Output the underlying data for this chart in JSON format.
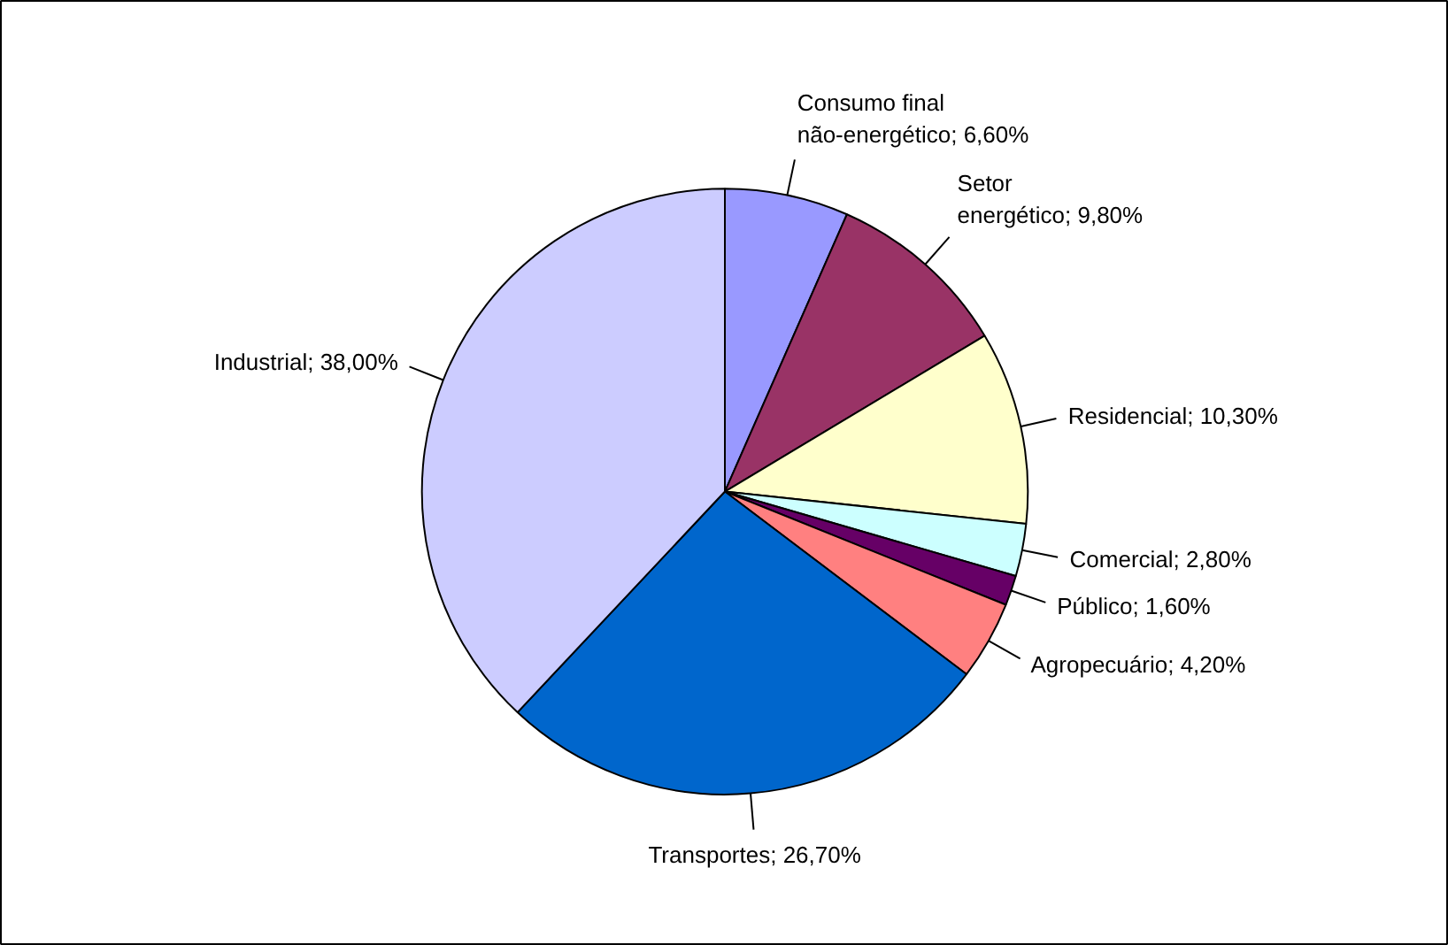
{
  "chart_data": {
    "type": "pie",
    "categories": [
      "Consumo final não-energético",
      "Setor energético",
      "Residencial",
      "Comercial",
      "Público",
      "Agropecuário",
      "Transportes",
      "Industrial"
    ],
    "values": [
      6.6,
      9.8,
      10.3,
      2.8,
      1.6,
      4.2,
      26.7,
      38.0
    ],
    "value_labels": [
      "6,60%",
      "9,80%",
      "10,30%",
      "2,80%",
      "1,60%",
      "4,20%",
      "26,70%",
      "38,00%"
    ],
    "colors": [
      "#9999ff",
      "#993366",
      "#ffffcc",
      "#ccffff",
      "#660066",
      "#ff8080",
      "#0066cc",
      "#ccccff"
    ],
    "legend": false
  }
}
